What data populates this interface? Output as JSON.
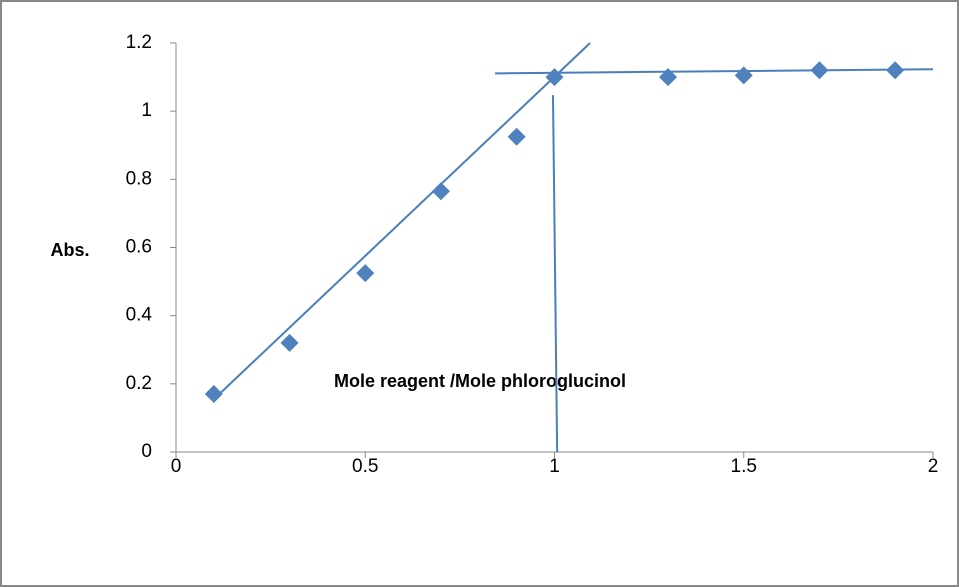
{
  "chart_data": {
    "type": "scatter",
    "x_label": "Mole reagent /Mole phloroglucinol",
    "y_label": "Abs.",
    "x": [
      0.1,
      0.3,
      0.5,
      0.7,
      0.9,
      1.0,
      1.3,
      1.5,
      1.7,
      1.9
    ],
    "values": [
      0.17,
      0.32,
      0.525,
      0.765,
      0.925,
      1.1,
      1.1,
      1.105,
      1.12,
      1.12
    ],
    "color": "#4f81bd",
    "lines": [
      {
        "x": [
          0.103,
          1.094
        ],
        "y": [
          0.158,
          1.2
        ]
      },
      {
        "x": [
          0.843,
          2.0
        ],
        "y": [
          1.111,
          1.123
        ]
      },
      {
        "x": [
          0.996,
          1.007
        ],
        "y": [
          1.047,
          0
        ]
      }
    ],
    "line_color": "#4a7ebb",
    "xlim": [
      0,
      2
    ],
    "xticks": [
      0,
      0.5,
      1,
      1.5,
      2
    ],
    "ylim": [
      0,
      1.2
    ],
    "yticks": [
      0,
      0.2,
      0.4,
      0.6,
      0.8,
      1,
      1.2
    ],
    "grid": false
  }
}
